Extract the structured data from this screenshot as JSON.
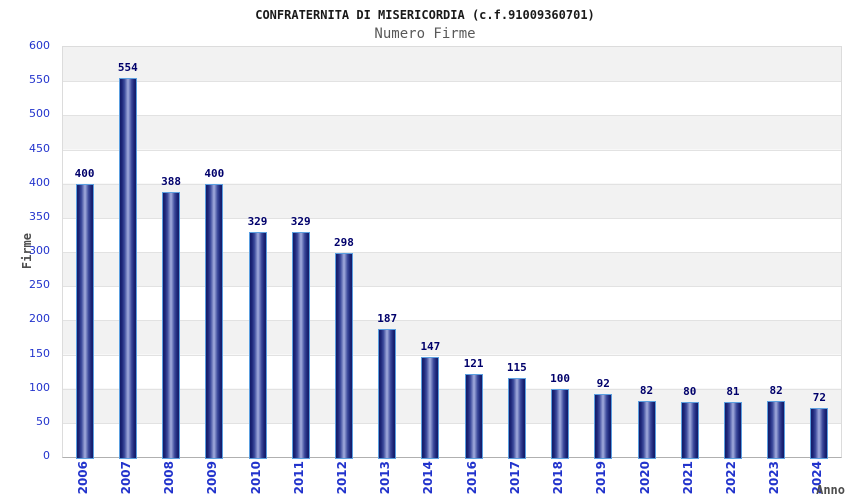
{
  "chart_data": {
    "type": "bar",
    "title": "CONFRATERNITA DI MISERICORDIA (c.f.91009360701)",
    "subtitle": "Numero Firme",
    "xlabel": "Anno",
    "ylabel": "Firme",
    "categories": [
      "2006",
      "2007",
      "2008",
      "2009",
      "2010",
      "2011",
      "2012",
      "2013",
      "2014",
      "2016",
      "2017",
      "2018",
      "2019",
      "2020",
      "2021",
      "2022",
      "2023",
      "2024"
    ],
    "values": [
      400,
      554,
      388,
      400,
      329,
      329,
      298,
      187,
      147,
      121,
      115,
      100,
      92,
      82,
      80,
      81,
      82,
      72
    ],
    "ylim": [
      0,
      600
    ],
    "y_ticks": [
      0,
      50,
      100,
      150,
      200,
      250,
      300,
      350,
      400,
      450,
      500,
      550,
      600
    ],
    "grid": true,
    "legend_position": "none",
    "band_fill": "alternating horizontal 50-unit bands",
    "colors": {
      "bar_dark": "#141b69",
      "bar_mid": "#3c4a9c",
      "bar_light": "#9aa4d8",
      "bar_border": "#5b9fe0",
      "value_label": "#00006b",
      "tick_label": "#2233cc",
      "axis_title": "#4d4d4d",
      "title": "#1a1a1a",
      "subtitle": "#595959",
      "band_gray": "#f2f2f2",
      "band_white": "#ffffff",
      "grid_line": "#e2e2e2"
    }
  }
}
